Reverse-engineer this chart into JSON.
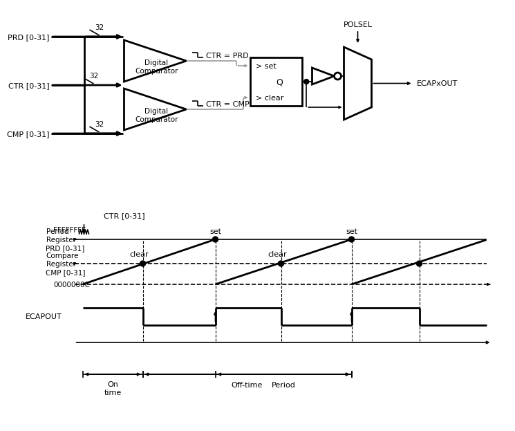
{
  "bg_color": "#ffffff",
  "line_color": "#000000",
  "gray_line": "#999999",
  "fig_width": 7.14,
  "fig_height": 6.04,
  "diagram": {
    "prd_label": "PRD [0-31]",
    "ctr_label": "CTR [0-31]",
    "cmp_label": "CMP [0-31]",
    "dc_label": "Digital\nComparator",
    "sr_set": "> set",
    "sr_clear": "> clear",
    "sr_q": "Q",
    "polsel": "POLSEL",
    "ecapxout": "ECAPxOUT",
    "ctr_prd": "CTR = PRD",
    "ctr_cmp": "CTR = CMP"
  },
  "timing": {
    "ctr_label": "CTR [0-31]",
    "ffffffff": "FFFFFFFF",
    "prd_label": "Period\nRegister\nPRD [0-31]",
    "cmp_label": "Compare\nRegister\nCMP [0-31]",
    "c_label": "0000000C",
    "ecapout_label": "ECAPOUT",
    "set1": "set",
    "set2": "set",
    "clear1": "clear",
    "clear2": "clear",
    "on_time": "On\ntime",
    "off_time": "Off-time",
    "period": "Period"
  }
}
